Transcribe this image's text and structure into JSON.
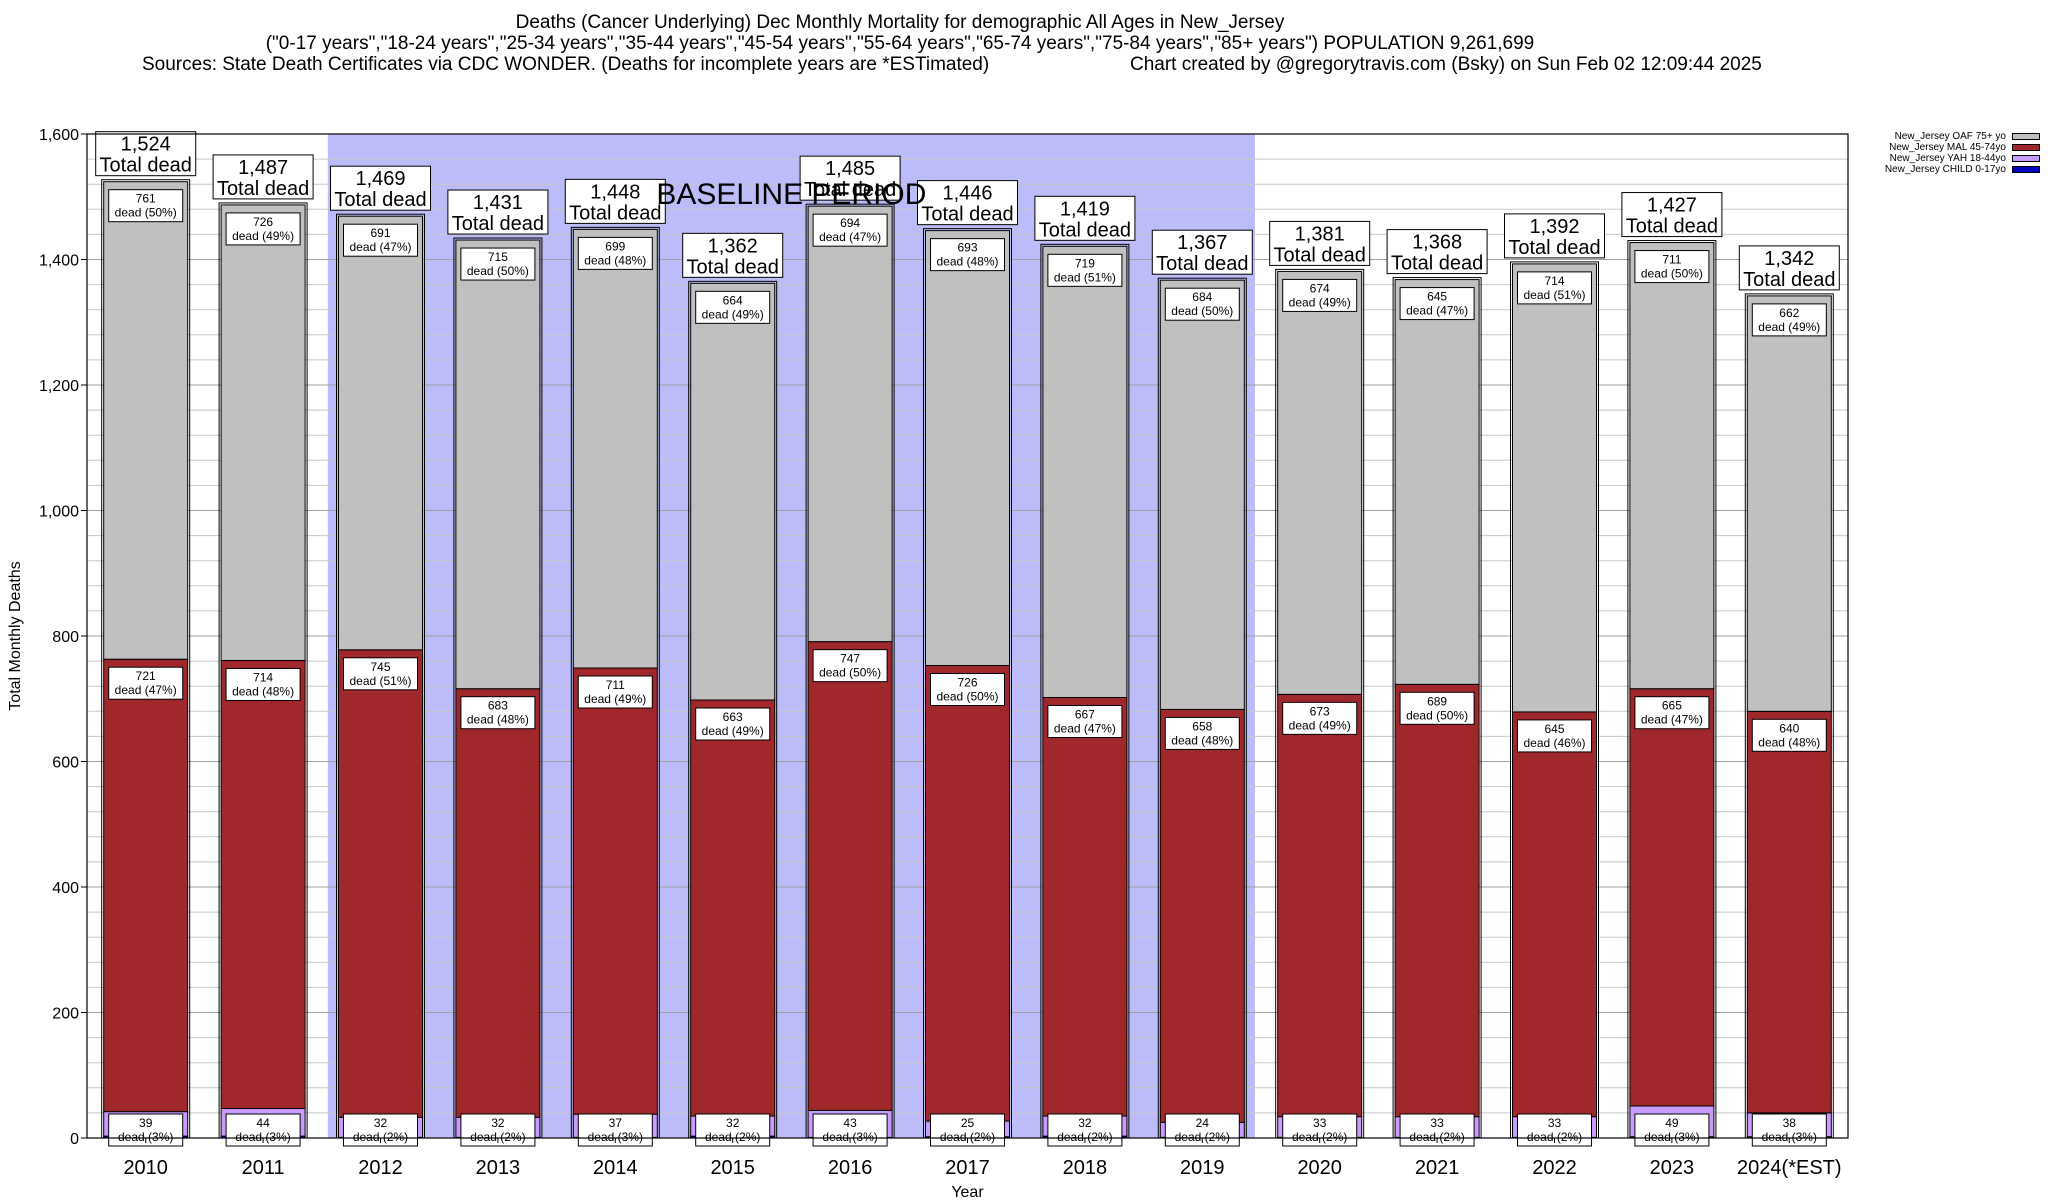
{
  "header": {
    "line1": "Deaths (Cancer Underlying) Dec Monthly Mortality for demographic All Ages in New_Jersey",
    "line2": "(\"0-17 years\",\"18-24 years\",\"25-34 years\",\"35-44 years\",\"45-54 years\",\"55-64 years\",\"65-74 years\",\"75-84 years\",\"85+ years\") POPULATION 9,261,699",
    "sources": "Sources: State Death Certificates via CDC WONDER. (Deaths for incomplete years are *ESTimated)",
    "credit": "Chart created by @gregorytravis.com (Bsky) on Sun Feb 02 12:09:44 2025"
  },
  "legend": [
    {
      "label": "New_Jersey OAF 75+ yo",
      "color": "#c0c0c0"
    },
    {
      "label": "New_Jersey MAL 45-74yo",
      "color": "#a0282a"
    },
    {
      "label": "New_Jersey YAH 18-44yo",
      "color": "#c89cff"
    },
    {
      "label": "New_Jersey CHILD 0-17yo",
      "color": "#0000c0"
    }
  ],
  "chart_data": {
    "type": "bar",
    "stacked": true,
    "xlabel": "Year",
    "ylabel": "Total Monthly Deaths",
    "ylim": [
      0,
      1600
    ],
    "yticks": [
      "0",
      "200",
      "400",
      "600",
      "800",
      "1,000",
      "1,200",
      "1,400",
      "1,600"
    ],
    "grid": true,
    "legend_position": "top-right",
    "baseline_label": "BASELINE PERIOD",
    "baseline_years": [
      "2012",
      "2019"
    ],
    "baseline_color": "#bcbcf8",
    "total_suffix": "Total dead",
    "categories": [
      "2010",
      "2011",
      "2012",
      "2013",
      "2014",
      "2015",
      "2016",
      "2017",
      "2018",
      "2019",
      "2020",
      "2021",
      "2022",
      "2023",
      "2024(*EST)"
    ],
    "totals": [
      "1,524",
      "1,487",
      "1,469",
      "1,431",
      "1,448",
      "1,362",
      "1,485",
      "1,446",
      "1,419",
      "1,367",
      "1,381",
      "1,368",
      "1,392",
      "1,427",
      "1,342"
    ],
    "series": [
      {
        "name": "New_Jersey CHILD 0-17yo",
        "color": "#0000c0",
        "values": [
          3,
          3,
          1,
          1,
          1,
          3,
          1,
          2,
          3,
          1,
          1,
          1,
          1,
          2,
          2
        ]
      },
      {
        "name": "New_Jersey YAH 18-44yo",
        "color": "#c89cff",
        "values": [
          39,
          44,
          32,
          32,
          37,
          32,
          43,
          25,
          32,
          24,
          33,
          33,
          33,
          49,
          38
        ],
        "labels": [
          "39\ndead (3%)",
          "44\ndead (3%)",
          "32\ndead (2%)",
          "32\ndead (2%)",
          "37\ndead (3%)",
          "32\ndead (2%)",
          "43\ndead (3%)",
          "25\ndead (2%)",
          "32\ndead (2%)",
          "24\ndead (2%)",
          "33\ndead (2%)",
          "33\ndead (2%)",
          "33\ndead (2%)",
          "49\ndead (3%)",
          "38\ndead (3%)"
        ]
      },
      {
        "name": "New_Jersey MAL 45-74yo",
        "color": "#a0282a",
        "values": [
          721,
          714,
          745,
          683,
          711,
          663,
          747,
          726,
          667,
          658,
          673,
          689,
          645,
          665,
          640
        ],
        "labels": [
          "721\ndead (47%)",
          "714\ndead (48%)",
          "745\ndead (51%)",
          "683\ndead (48%)",
          "711\ndead (49%)",
          "663\ndead (49%)",
          "747\ndead (50%)",
          "726\ndead (50%)",
          "667\ndead (47%)",
          "658\ndead (48%)",
          "673\ndead (49%)",
          "689\ndead (50%)",
          "645\ndead (46%)",
          "665\ndead (47%)",
          "640\ndead (48%)"
        ]
      },
      {
        "name": "New_Jersey OAF 75+ yo",
        "color": "#c0c0c0",
        "values": [
          761,
          726,
          691,
          715,
          699,
          664,
          694,
          693,
          719,
          684,
          674,
          645,
          714,
          711,
          662
        ],
        "labels": [
          "761\ndead (50%)",
          "726\ndead (49%)",
          "691\ndead (47%)",
          "715\ndead (50%)",
          "699\ndead (48%)",
          "664\ndead (49%)",
          "694\ndead (47%)",
          "693\ndead (48%)",
          "719\ndead (51%)",
          "684\ndead (50%)",
          "674\ndead (49%)",
          "645\ndead (47%)",
          "714\ndead (51%)",
          "711\ndead (50%)",
          "662\ndead (49%)"
        ]
      }
    ]
  }
}
